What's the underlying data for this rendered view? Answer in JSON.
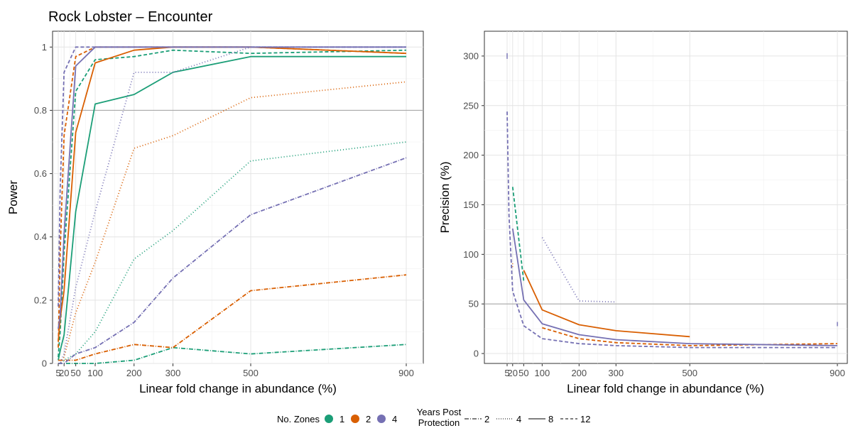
{
  "chart_data": [
    {
      "type": "line",
      "title": "Rock Lobster – Encounter",
      "xlabel": "Linear fold change in abundance (%)",
      "ylabel": "Power",
      "x": [
        5,
        10,
        20,
        50,
        100,
        200,
        300,
        500,
        900
      ],
      "x_ticks": [
        "5",
        "20",
        "50",
        "100",
        "200",
        "300",
        "500",
        "900"
      ],
      "y_ticks": [
        "0",
        "0.2",
        "0.4",
        "0.6",
        "0.8",
        "1"
      ],
      "ylim": [
        0,
        1.05
      ],
      "reference_line": 0.8,
      "grid": true,
      "series": [
        {
          "zones": "1",
          "years": "2",
          "values": [
            0.0,
            0.0,
            0.0,
            0.0,
            0.0,
            0.01,
            0.05,
            0.03,
            0.06
          ]
        },
        {
          "zones": "1",
          "years": "4",
          "values": [
            0.0,
            0.0,
            0.01,
            0.03,
            0.1,
            0.33,
            0.42,
            0.64,
            0.7
          ]
        },
        {
          "zones": "1",
          "years": "8",
          "values": [
            0.01,
            0.04,
            0.09,
            0.48,
            0.82,
            0.85,
            0.92,
            0.97,
            0.97
          ]
        },
        {
          "zones": "1",
          "years": "12",
          "values": [
            0.02,
            0.1,
            0.35,
            0.86,
            0.96,
            0.97,
            0.99,
            0.98,
            0.99
          ]
        },
        {
          "zones": "2",
          "years": "2",
          "values": [
            0.01,
            0.01,
            0.01,
            0.01,
            0.03,
            0.06,
            0.05,
            0.23,
            0.28
          ]
        },
        {
          "zones": "2",
          "years": "4",
          "values": [
            0.0,
            0.0,
            0.02,
            0.16,
            0.32,
            0.68,
            0.72,
            0.84,
            0.89
          ]
        },
        {
          "zones": "2",
          "years": "8",
          "values": [
            0.07,
            0.14,
            0.23,
            0.73,
            0.95,
            0.99,
            1.0,
            1.0,
            0.98
          ]
        },
        {
          "zones": "2",
          "years": "12",
          "values": [
            0.05,
            0.35,
            0.72,
            0.97,
            1.0,
            1.0,
            1.0,
            1.0,
            0.98
          ]
        },
        {
          "zones": "4",
          "years": "2",
          "values": [
            0.0,
            0.0,
            0.0,
            0.03,
            0.05,
            0.13,
            0.27,
            0.47,
            0.65
          ]
        },
        {
          "zones": "4",
          "years": "4",
          "values": [
            0.0,
            0.0,
            0.03,
            0.24,
            0.48,
            0.92,
            0.92,
            1.0,
            1.0
          ]
        },
        {
          "zones": "4",
          "years": "8",
          "values": [
            0.11,
            0.15,
            0.41,
            0.94,
            1.0,
            1.0,
            1.0,
            1.0,
            1.0
          ]
        },
        {
          "zones": "4",
          "years": "12",
          "values": [
            0.18,
            0.55,
            0.92,
            1.0,
            1.0,
            1.0,
            1.0,
            1.0,
            1.0
          ]
        }
      ]
    },
    {
      "type": "line",
      "xlabel": "Linear fold change in abundance (%)",
      "ylabel": "Precision (%)",
      "x": [
        5,
        10,
        20,
        50,
        100,
        200,
        300,
        500,
        900
      ],
      "x_ticks": [
        "5",
        "20",
        "50",
        "100",
        "200",
        "300",
        "500",
        "900"
      ],
      "y_ticks": [
        "0",
        "50",
        "100",
        "150",
        "200",
        "250",
        "300"
      ],
      "ylim": [
        -10,
        325
      ],
      "reference_line": 50,
      "grid": true,
      "series": [
        {
          "zones": "1",
          "years": "12",
          "values": [
            null,
            null,
            168,
            73,
            null,
            null,
            null,
            null,
            null
          ]
        },
        {
          "zones": "2",
          "years": "4",
          "values": [
            null,
            null,
            88,
            null,
            null,
            null,
            null,
            null,
            null
          ]
        },
        {
          "zones": "2",
          "years": "8",
          "values": [
            null,
            null,
            null,
            84,
            44,
            29,
            23,
            17,
            null
          ]
        },
        {
          "zones": "2",
          "years": "12",
          "values": [
            null,
            null,
            null,
            null,
            26,
            15,
            11,
            8,
            10
          ]
        },
        {
          "zones": "4",
          "years": "2",
          "values": [
            null,
            null,
            null,
            null,
            null,
            null,
            null,
            null,
            29
          ]
        },
        {
          "zones": "4",
          "years": "4",
          "values": [
            null,
            null,
            null,
            null,
            117,
            53,
            52,
            null,
            null
          ]
        },
        {
          "zones": "4",
          "years": "8",
          "values": [
            300,
            null,
            126,
            54,
            30,
            19,
            14,
            10,
            8
          ]
        },
        {
          "zones": "4",
          "years": "12",
          "values": [
            244,
            140,
            63,
            28,
            15,
            10,
            8,
            6,
            6
          ]
        }
      ]
    }
  ],
  "legend": {
    "zones_title": "No. Zones",
    "zones": [
      {
        "label": "1",
        "color": "#1b9e77"
      },
      {
        "label": "2",
        "color": "#d95f02"
      },
      {
        "label": "4",
        "color": "#7570b3"
      }
    ],
    "years_title_1": "Years Post",
    "years_title_2": "Protection",
    "years": [
      {
        "label": "2",
        "linetype": "dashdot"
      },
      {
        "label": "4",
        "linetype": "dotted"
      },
      {
        "label": "8",
        "linetype": "solid"
      },
      {
        "label": "12",
        "linetype": "dashed"
      }
    ]
  }
}
